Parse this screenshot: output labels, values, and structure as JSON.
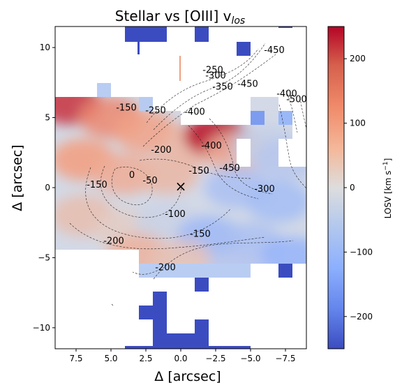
{
  "chart_data": {
    "type": "heatmap",
    "title": "Stellar vs [OIII] v",
    "title_subscript": "los",
    "xlabel": "Δ  [arcsec]",
    "ylabel": "Δ  [arcsec]",
    "xlim": [
      9,
      -9
    ],
    "ylim": [
      -11.5,
      11.5
    ],
    "x_ticks": [
      7.5,
      5.0,
      2.5,
      0.0,
      -2.5,
      -5.0,
      -7.5
    ],
    "x_tick_labels": [
      "7.5",
      "5.0",
      "2.5",
      "0.0",
      "−2.5",
      "−5.0",
      "−7.5"
    ],
    "y_ticks": [
      10,
      5,
      0,
      -5,
      -10
    ],
    "y_tick_labels": [
      "10",
      "5",
      "0",
      "−5",
      "−10"
    ],
    "grid": false,
    "center_marker": {
      "x": 0,
      "y": 0,
      "symbol": "×"
    },
    "colorbar": {
      "label": "LOSV [km s",
      "label_superscript": "−1",
      "label_suffix": "]",
      "range": [
        -250,
        250
      ],
      "colormap": "coolwarm",
      "ticks": [
        200,
        100,
        0,
        -100,
        -200
      ],
      "tick_labels": [
        "200",
        "100",
        "0",
        "−100",
        "−200"
      ],
      "low_color": "#3b4cc0",
      "mid_color": "#dddddd",
      "high_color": "#b40426"
    },
    "contour_labels": [
      {
        "text": "-250",
        "x": -2.3,
        "y": 8.2
      },
      {
        "text": "-300",
        "x": -2.5,
        "y": 7.8
      },
      {
        "text": "-350",
        "x": -3.0,
        "y": 7.0
      },
      {
        "text": "-450",
        "x": -4.8,
        "y": 7.2
      },
      {
        "text": "-450",
        "x": -6.7,
        "y": 9.6
      },
      {
        "text": "-400",
        "x": -7.6,
        "y": 6.5
      },
      {
        "text": "-500",
        "x": -8.3,
        "y": 6.1
      },
      {
        "text": "-150",
        "x": 3.9,
        "y": 5.5
      },
      {
        "text": "-250",
        "x": 1.8,
        "y": 5.3
      },
      {
        "text": "-400",
        "x": -1.0,
        "y": 5.2
      },
      {
        "text": "-200",
        "x": 1.4,
        "y": 2.5
      },
      {
        "text": "-400",
        "x": -2.2,
        "y": 2.8
      },
      {
        "text": "-150",
        "x": -1.3,
        "y": 1.0
      },
      {
        "text": "-450",
        "x": -3.5,
        "y": 1.2
      },
      {
        "text": "0",
        "x": 3.5,
        "y": 0.7
      },
      {
        "text": "-50",
        "x": 2.2,
        "y": 0.3
      },
      {
        "text": "-150",
        "x": 6.0,
        "y": 0.0
      },
      {
        "text": "-300",
        "x": -6.0,
        "y": -0.3
      },
      {
        "text": "-100",
        "x": 0.4,
        "y": -2.1
      },
      {
        "text": "-150",
        "x": -1.4,
        "y": -3.5
      },
      {
        "text": "-200",
        "x": 4.8,
        "y": -4.0
      },
      {
        "text": "-200",
        "x": 1.1,
        "y": -5.9
      }
    ],
    "velocity_field": [
      {
        "x": 8.0,
        "y": 6.0,
        "v": 210
      },
      {
        "x": 5.0,
        "y": 5.0,
        "v": 140
      },
      {
        "x": 2.5,
        "y": 4.0,
        "v": 110
      },
      {
        "x": 7.0,
        "y": 2.0,
        "v": 120
      },
      {
        "x": 4.0,
        "y": 1.0,
        "v": 90
      },
      {
        "x": 1.0,
        "y": 1.0,
        "v": 70
      },
      {
        "x": -1.0,
        "y": 3.0,
        "v": 70
      },
      {
        "x": -2.5,
        "y": 3.7,
        "v": 240
      },
      {
        "x": -4.0,
        "y": 2.5,
        "v": 80
      },
      {
        "x": -6.0,
        "y": 3.0,
        "v": -40
      },
      {
        "x": -7.5,
        "y": 2.0,
        "v": -60
      },
      {
        "x": -4.0,
        "y": 0.0,
        "v": -80
      },
      {
        "x": -7.0,
        "y": -1.0,
        "v": -90
      },
      {
        "x": 7.0,
        "y": -2.0,
        "v": 60
      },
      {
        "x": 4.0,
        "y": -3.0,
        "v": 30
      },
      {
        "x": 1.0,
        "y": -2.5,
        "v": -30
      },
      {
        "x": -2.0,
        "y": -3.5,
        "v": -100
      },
      {
        "x": -5.0,
        "y": -4.0,
        "v": -80
      },
      {
        "x": -8.0,
        "y": -5.0,
        "v": -110
      },
      {
        "x": 3.0,
        "y": -4.8,
        "v": 80
      },
      {
        "x": 0.0,
        "y": -5.2,
        "v": 50
      },
      {
        "x": -4.0,
        "y": -6.0,
        "v": -60
      }
    ]
  }
}
